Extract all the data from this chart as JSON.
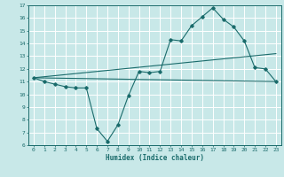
{
  "title": "",
  "xlabel": "Humidex (Indice chaleur)",
  "ylabel": "",
  "bg_color": "#c8e8e8",
  "grid_color": "#ffffff",
  "line_color": "#1a6b6b",
  "xlim": [
    -0.5,
    23.5
  ],
  "ylim": [
    6,
    17
  ],
  "xticks": [
    0,
    1,
    2,
    3,
    4,
    5,
    6,
    7,
    8,
    9,
    10,
    11,
    12,
    13,
    14,
    15,
    16,
    17,
    18,
    19,
    20,
    21,
    22,
    23
  ],
  "yticks": [
    6,
    7,
    8,
    9,
    10,
    11,
    12,
    13,
    14,
    15,
    16,
    17
  ],
  "line1_x": [
    0,
    1,
    2,
    3,
    4,
    5,
    6,
    7,
    8,
    9,
    10,
    11,
    12,
    13,
    14,
    15,
    16,
    17,
    18,
    19,
    20,
    21,
    22,
    23
  ],
  "line1_y": [
    11.3,
    11.0,
    10.8,
    10.6,
    10.5,
    10.5,
    7.3,
    6.3,
    7.6,
    9.9,
    11.8,
    11.7,
    11.8,
    14.3,
    14.2,
    15.4,
    16.1,
    16.8,
    15.9,
    15.3,
    14.2,
    12.1,
    12.0,
    11.0
  ],
  "line2_x": [
    0,
    23
  ],
  "line2_y": [
    11.3,
    11.0
  ],
  "line3_x": [
    0,
    23
  ],
  "line3_y": [
    11.3,
    13.2
  ]
}
